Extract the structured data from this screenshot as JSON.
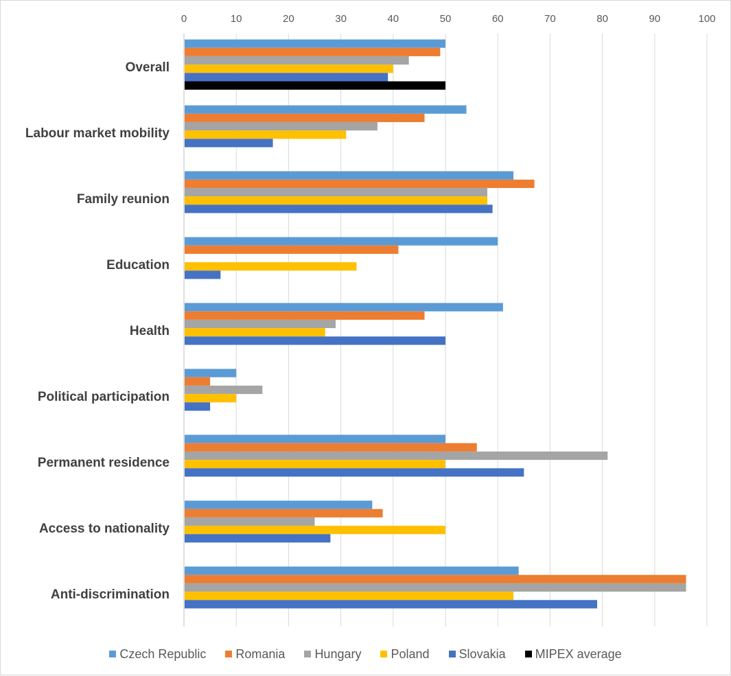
{
  "chart_data": {
    "type": "bar",
    "orientation": "horizontal",
    "categories": [
      "Overall",
      "Labour market mobility",
      "Family reunion",
      "Education",
      "Health",
      "Political participation",
      "Permanent residence",
      "Access to nationality",
      "Anti-discrimination"
    ],
    "xlim": [
      0,
      100
    ],
    "ticks": [
      "0",
      "10",
      "20",
      "30",
      "40",
      "50",
      "60",
      "70",
      "80",
      "90",
      "100"
    ],
    "grid": true,
    "legend_position": "bottom",
    "series": [
      {
        "name": "Czech Republic",
        "color": "#5b9bd5",
        "values": [
          50,
          54,
          63,
          60,
          61,
          10,
          50,
          36,
          64
        ]
      },
      {
        "name": "Romania",
        "color": "#ed7d31",
        "values": [
          49,
          46,
          67,
          41,
          46,
          5,
          56,
          38,
          96
        ]
      },
      {
        "name": "Hungary",
        "color": "#a5a5a5",
        "values": [
          43,
          37,
          58,
          null,
          29,
          15,
          81,
          25,
          96
        ]
      },
      {
        "name": "Poland",
        "color": "#ffc000",
        "values": [
          40,
          31,
          58,
          33,
          27,
          10,
          50,
          50,
          63
        ]
      },
      {
        "name": "Slovakia",
        "color": "#4472c4",
        "values": [
          39,
          17,
          59,
          7,
          50,
          5,
          65,
          28,
          79
        ]
      },
      {
        "name": "MIPEX average",
        "color": "#000000",
        "values": [
          50,
          null,
          null,
          null,
          null,
          null,
          null,
          null,
          null
        ]
      }
    ]
  }
}
